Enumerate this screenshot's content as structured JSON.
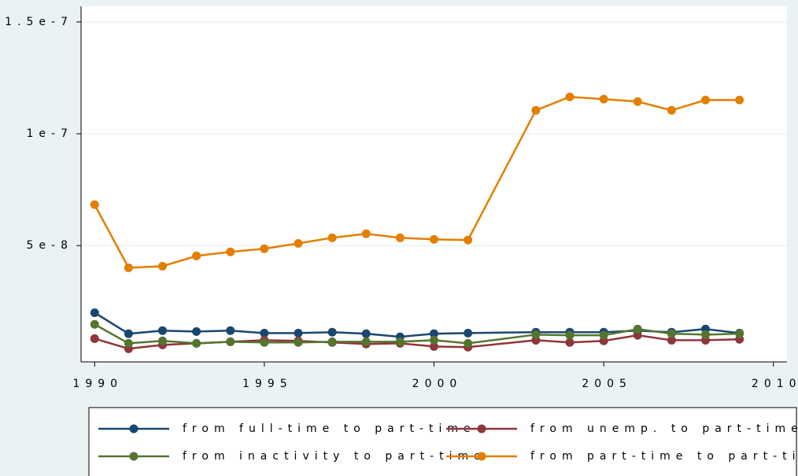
{
  "chart_data": {
    "type": "line",
    "x": [
      1990,
      1991,
      1992,
      1993,
      1994,
      1995,
      1996,
      1997,
      1998,
      1999,
      2000,
      2001,
      2003,
      2004,
      2005,
      2006,
      2007,
      2008,
      2009
    ],
    "series": [
      {
        "name": "from full-time to part-time",
        "color": "#1a476f",
        "values": [
          2e-08,
          1.06e-08,
          1.2e-08,
          1.16e-08,
          1.2e-08,
          1.09e-08,
          1.09e-08,
          1.13e-08,
          1.06e-08,
          9.2e-09,
          1.06e-08,
          1.09e-08,
          1.13e-08,
          1.13e-08,
          1.13e-08,
          1.2e-08,
          1.13e-08,
          1.27e-08,
          1.09e-08
        ]
      },
      {
        "name": "from unemp. to part-time",
        "color": "#90353b",
        "values": [
          8.4e-09,
          3.9e-09,
          5.6e-09,
          6.3e-09,
          7e-09,
          7.7e-09,
          7.4e-09,
          6.7e-09,
          6e-09,
          6.3e-09,
          4.9e-09,
          4.6e-09,
          7.7e-09,
          6.7e-09,
          7.4e-09,
          9.9e-09,
          7.7e-09,
          7.7e-09,
          8.1e-09
        ]
      },
      {
        "name": "from inactivity to part-time",
        "color": "#55752f",
        "values": [
          1.48e-08,
          6.3e-09,
          7.4e-09,
          6.3e-09,
          7e-09,
          6.7e-09,
          6.7e-09,
          7e-09,
          7e-09,
          7e-09,
          7.7e-09,
          6.3e-09,
          1.02e-08,
          9.9e-09,
          9.9e-09,
          1.27e-08,
          1.06e-08,
          1.02e-08,
          1.06e-08
        ]
      },
      {
        "name": "from part-time to part-time",
        "color": "#e37e00",
        "values": [
          6.83e-08,
          4.01e-08,
          4.08e-08,
          4.54e-08,
          4.72e-08,
          4.86e-08,
          5.1e-08,
          5.35e-08,
          5.53e-08,
          5.35e-08,
          5.28e-08,
          5.25e-08,
          1.105e-07,
          1.165e-07,
          1.155e-07,
          1.144e-07,
          1.105e-07,
          1.151e-07,
          1.151e-07
        ]
      }
    ],
    "xlim": [
      1989.6,
      2010.4
    ],
    "xticks": [
      1990,
      1995,
      2000,
      2005,
      2010
    ],
    "ylim": [
      -2e-09,
      1.57e-07
    ],
    "yticks": [
      5e-08,
      1e-07,
      1.5e-07
    ],
    "grid": true
  }
}
